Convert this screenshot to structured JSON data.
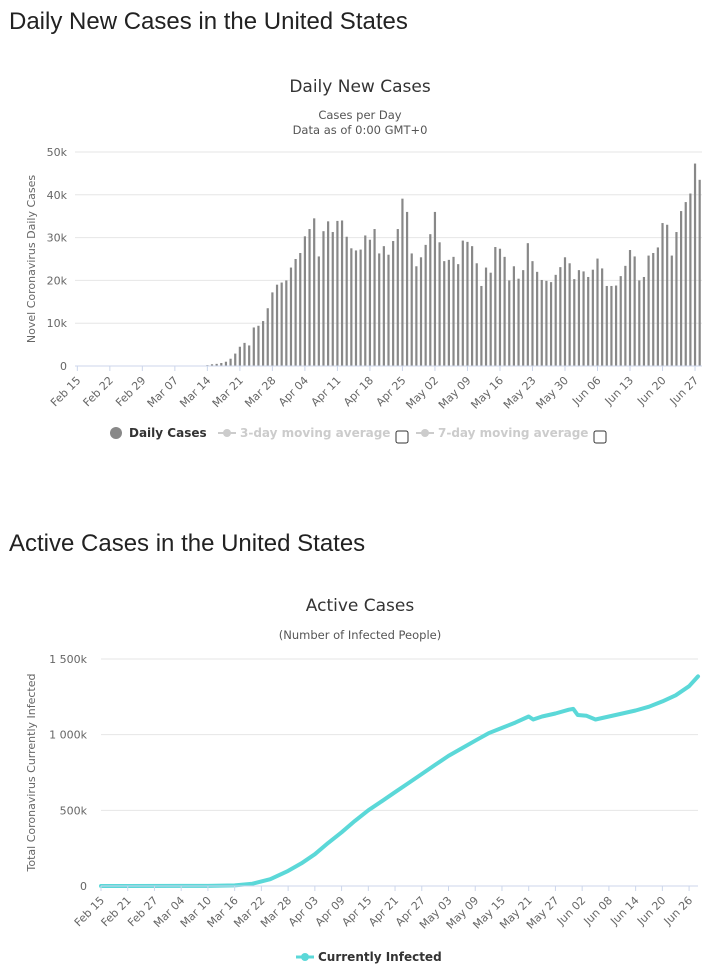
{
  "sections": {
    "daily_title": "Daily New Cases in the United States",
    "active_title": "Active Cases in the United States"
  },
  "chart_data": [
    {
      "type": "bar",
      "title": "Daily New Cases",
      "subtitle_line1": "Cases per Day",
      "subtitle_line2": "Data as of 0:00 GMT+0",
      "ylabel": "Novel Coronavirus Daily Cases",
      "ylim": [
        0,
        50000
      ],
      "y_ticks": [
        0,
        10000,
        20000,
        30000,
        40000,
        50000
      ],
      "y_tick_labels": [
        "0",
        "10k",
        "20k",
        "30k",
        "40k",
        "50k"
      ],
      "x_tick_labels": [
        "Feb 15",
        "Feb 22",
        "Feb 29",
        "Mar 07",
        "Mar 14",
        "Mar 21",
        "Mar 28",
        "Apr 04",
        "Apr 11",
        "Apr 18",
        "Apr 25",
        "May 02",
        "May 09",
        "May 16",
        "May 23",
        "May 30",
        "Jun 06",
        "Jun 13",
        "Jun 20",
        "Jun 27"
      ],
      "grid": true,
      "legend": [
        {
          "name": "Daily Cases",
          "color": "#888888",
          "enabled": true
        },
        {
          "name": "3-day moving average",
          "color": "#cccccc",
          "enabled": false
        },
        {
          "name": "7-day moving average",
          "color": "#cccccc",
          "enabled": false
        }
      ],
      "bar_color": "#888888",
      "series": [
        {
          "name": "Daily Cases",
          "start_date": "Feb 15",
          "values": [
            0,
            0,
            0,
            0,
            0,
            0,
            0,
            0,
            0,
            0,
            0,
            0,
            0,
            0,
            0,
            0,
            0,
            0,
            0,
            0,
            0,
            0,
            0,
            0,
            0,
            0,
            0,
            0,
            200,
            400,
            500,
            700,
            1000,
            1700,
            2900,
            4500,
            5400,
            4800,
            9000,
            9400,
            10500,
            13500,
            17200,
            19000,
            19500,
            20000,
            23000,
            25000,
            26400,
            30300,
            32000,
            34500,
            25600,
            31500,
            33800,
            31300,
            33900,
            34000,
            30200,
            27500,
            27000,
            27200,
            30500,
            29500,
            32000,
            26300,
            28000,
            26000,
            29200,
            32000,
            39100,
            36000,
            26300,
            23300,
            25400,
            28300,
            30800,
            36000,
            28900,
            24500,
            24800,
            25500,
            23800,
            29300,
            29000,
            28000,
            24000,
            18700,
            23000,
            21800,
            27800,
            27400,
            25500,
            20000,
            23300,
            20400,
            22400,
            28700,
            24500,
            22000,
            20100,
            19900,
            19600,
            21300,
            23100,
            25400,
            24000,
            20300,
            22400,
            22100,
            20800,
            22500,
            25100,
            22800,
            18700,
            18700,
            18800,
            21000,
            23400,
            27100,
            25600,
            20000,
            20800,
            25800,
            26400,
            27700,
            33400,
            33000,
            25800,
            31300,
            36200,
            38300,
            40300,
            47300,
            43500
          ]
        }
      ]
    },
    {
      "type": "line",
      "title": "Active Cases",
      "subtitle": "(Number of Infected People)",
      "ylabel": "Total Coronavirus Currently Infected",
      "ylim": [
        0,
        1500000
      ],
      "y_ticks": [
        0,
        500000,
        1000000,
        1500000
      ],
      "y_tick_labels": [
        "0",
        "500k",
        "1 000k",
        "1 500k"
      ],
      "x_tick_labels": [
        "Feb 15",
        "Feb 21",
        "Feb 27",
        "Mar 04",
        "Mar 10",
        "Mar 16",
        "Mar 22",
        "Mar 28",
        "Apr 03",
        "Apr 09",
        "Apr 15",
        "Apr 21",
        "Apr 27",
        "May 03",
        "May 09",
        "May 15",
        "May 21",
        "May 27",
        "Jun 02",
        "Jun 08",
        "Jun 14",
        "Jun 20",
        "Jun 26"
      ],
      "grid": true,
      "legend": [
        {
          "name": "Currently Infected",
          "color": "#5bd8d8",
          "enabled": true
        }
      ],
      "line_color": "#5bd8d8",
      "series": [
        {
          "name": "Currently Infected",
          "points": [
            {
              "date": "Feb 15",
              "value": 0
            },
            {
              "date": "Mar 04",
              "value": 500
            },
            {
              "date": "Mar 10",
              "value": 800
            },
            {
              "date": "Mar 16",
              "value": 4000
            },
            {
              "date": "Mar 20",
              "value": 15000
            },
            {
              "date": "Mar 24",
              "value": 45000
            },
            {
              "date": "Mar 28",
              "value": 100000
            },
            {
              "date": "Mar 31",
              "value": 150000
            },
            {
              "date": "Apr 03",
              "value": 210000
            },
            {
              "date": "Apr 06",
              "value": 285000
            },
            {
              "date": "Apr 09",
              "value": 355000
            },
            {
              "date": "Apr 12",
              "value": 430000
            },
            {
              "date": "Apr 15",
              "value": 500000
            },
            {
              "date": "Apr 18",
              "value": 560000
            },
            {
              "date": "Apr 21",
              "value": 620000
            },
            {
              "date": "Apr 24",
              "value": 680000
            },
            {
              "date": "Apr 27",
              "value": 740000
            },
            {
              "date": "Apr 30",
              "value": 800000
            },
            {
              "date": "May 03",
              "value": 860000
            },
            {
              "date": "May 06",
              "value": 910000
            },
            {
              "date": "May 09",
              "value": 960000
            },
            {
              "date": "May 12",
              "value": 1010000
            },
            {
              "date": "May 15",
              "value": 1045000
            },
            {
              "date": "May 18",
              "value": 1080000
            },
            {
              "date": "May 21",
              "value": 1120000
            },
            {
              "date": "May 22",
              "value": 1100000
            },
            {
              "date": "May 24",
              "value": 1120000
            },
            {
              "date": "May 27",
              "value": 1140000
            },
            {
              "date": "May 30",
              "value": 1165000
            },
            {
              "date": "May 31",
              "value": 1170000
            },
            {
              "date": "Jun 01",
              "value": 1130000
            },
            {
              "date": "Jun 03",
              "value": 1125000
            },
            {
              "date": "Jun 05",
              "value": 1100000
            },
            {
              "date": "Jun 08",
              "value": 1120000
            },
            {
              "date": "Jun 11",
              "value": 1140000
            },
            {
              "date": "Jun 14",
              "value": 1160000
            },
            {
              "date": "Jun 17",
              "value": 1185000
            },
            {
              "date": "Jun 20",
              "value": 1220000
            },
            {
              "date": "Jun 23",
              "value": 1260000
            },
            {
              "date": "Jun 26",
              "value": 1320000
            },
            {
              "date": "Jun 28",
              "value": 1385000
            }
          ]
        }
      ]
    }
  ]
}
